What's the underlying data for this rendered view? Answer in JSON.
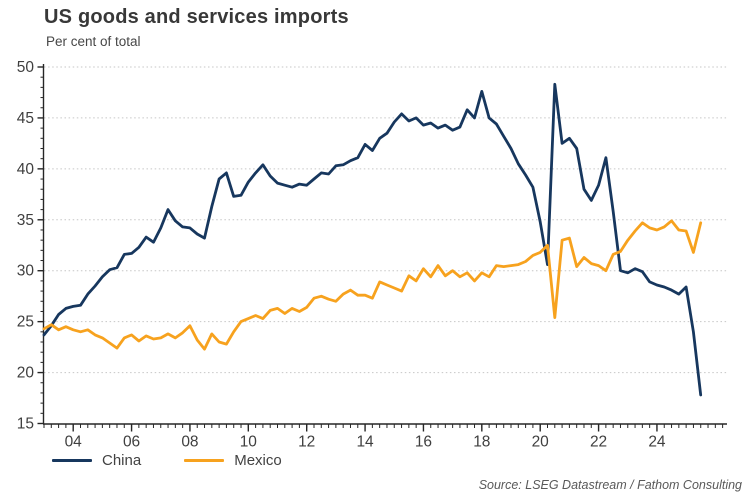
{
  "header": {
    "title": "US goods and services imports",
    "subtitle": "Per cent of total"
  },
  "source": "Source: LSEG Datastream / Fathom Consulting",
  "colors": {
    "china_line": "#17375e",
    "mexico_line": "#f7a21e",
    "gridline": "#c6c6c6",
    "axis": "#262626",
    "tick_label": "#3f3f3f"
  },
  "legend": {
    "items": [
      {
        "label": "China",
        "color": "#17375e"
      },
      {
        "label": "Mexico",
        "color": "#f7a21e"
      }
    ]
  },
  "chart_data": {
    "type": "line",
    "title": "US goods and services imports",
    "ylabel": "Per cent of total",
    "xlabel": "",
    "grid": "horizontal-dotted",
    "legend_position": "bottom-left",
    "ylim": [
      15,
      50
    ],
    "ytick_step": 5,
    "ytick_labels": [
      "15",
      "20",
      "25",
      "30",
      "35",
      "40",
      "45",
      "50"
    ],
    "x_start": 2003.0,
    "x_step": 0.25,
    "x_end": 2025.5,
    "x_axis_max": 2026.4,
    "xtick_years": [
      2004,
      2006,
      2008,
      2010,
      2012,
      2014,
      2016,
      2018,
      2020,
      2022,
      2024
    ],
    "xtick_labels": [
      "04",
      "06",
      "08",
      "10",
      "12",
      "14",
      "16",
      "18",
      "20",
      "22",
      "24"
    ],
    "minor_xtick_step": 0.25,
    "minor_ytick_step": 1,
    "series": [
      {
        "name": "China",
        "color": "#17375e",
        "values": [
          23.7,
          24.6,
          25.7,
          26.3,
          26.5,
          26.6,
          27.7,
          28.5,
          29.4,
          30.1,
          30.3,
          31.6,
          31.7,
          32.3,
          33.3,
          32.8,
          34.2,
          36.0,
          34.9,
          34.3,
          34.2,
          33.6,
          33.2,
          36.3,
          39.0,
          39.6,
          37.3,
          37.4,
          38.7,
          39.6,
          40.4,
          39.3,
          38.6,
          38.4,
          38.2,
          38.5,
          38.4,
          39.0,
          39.6,
          39.5,
          40.3,
          40.4,
          40.8,
          41.1,
          42.4,
          41.8,
          43.0,
          43.5,
          44.6,
          45.4,
          44.7,
          45.0,
          44.3,
          44.5,
          44.0,
          44.3,
          43.8,
          44.1,
          45.8,
          45.0,
          47.6,
          45.0,
          44.4,
          43.2,
          42.0,
          40.5,
          39.4,
          38.2,
          34.8,
          30.6,
          48.3,
          42.5,
          43.0,
          42.0,
          38.0,
          36.9,
          38.4,
          41.1,
          35.8,
          30.0,
          29.8,
          30.2,
          29.9,
          28.9,
          28.6,
          28.4,
          28.1,
          27.7,
          28.4,
          24.0,
          17.8
        ]
      },
      {
        "name": "Mexico",
        "color": "#f7a21e",
        "values": [
          24.3,
          24.7,
          24.2,
          24.5,
          24.2,
          24.0,
          24.2,
          23.7,
          23.4,
          22.9,
          22.4,
          23.4,
          23.7,
          23.1,
          23.6,
          23.3,
          23.4,
          23.8,
          23.4,
          23.9,
          24.6,
          23.2,
          22.3,
          23.8,
          23.0,
          22.8,
          24.0,
          25.0,
          25.3,
          25.6,
          25.3,
          26.1,
          26.3,
          25.8,
          26.3,
          26.0,
          26.4,
          27.3,
          27.5,
          27.2,
          27.0,
          27.7,
          28.1,
          27.6,
          27.6,
          27.3,
          28.9,
          28.6,
          28.3,
          28.0,
          29.5,
          29.0,
          30.2,
          29.4,
          30.5,
          29.5,
          30.0,
          29.4,
          29.8,
          29.0,
          29.8,
          29.4,
          30.5,
          30.4,
          30.5,
          30.6,
          30.9,
          31.5,
          31.8,
          32.5,
          25.4,
          33.0,
          33.2,
          30.4,
          31.3,
          30.7,
          30.5,
          30.0,
          31.6,
          31.9,
          33.0,
          33.9,
          34.7,
          34.2,
          34.0,
          34.3,
          34.9,
          34.0,
          33.9,
          31.8,
          34.7
        ]
      }
    ]
  }
}
